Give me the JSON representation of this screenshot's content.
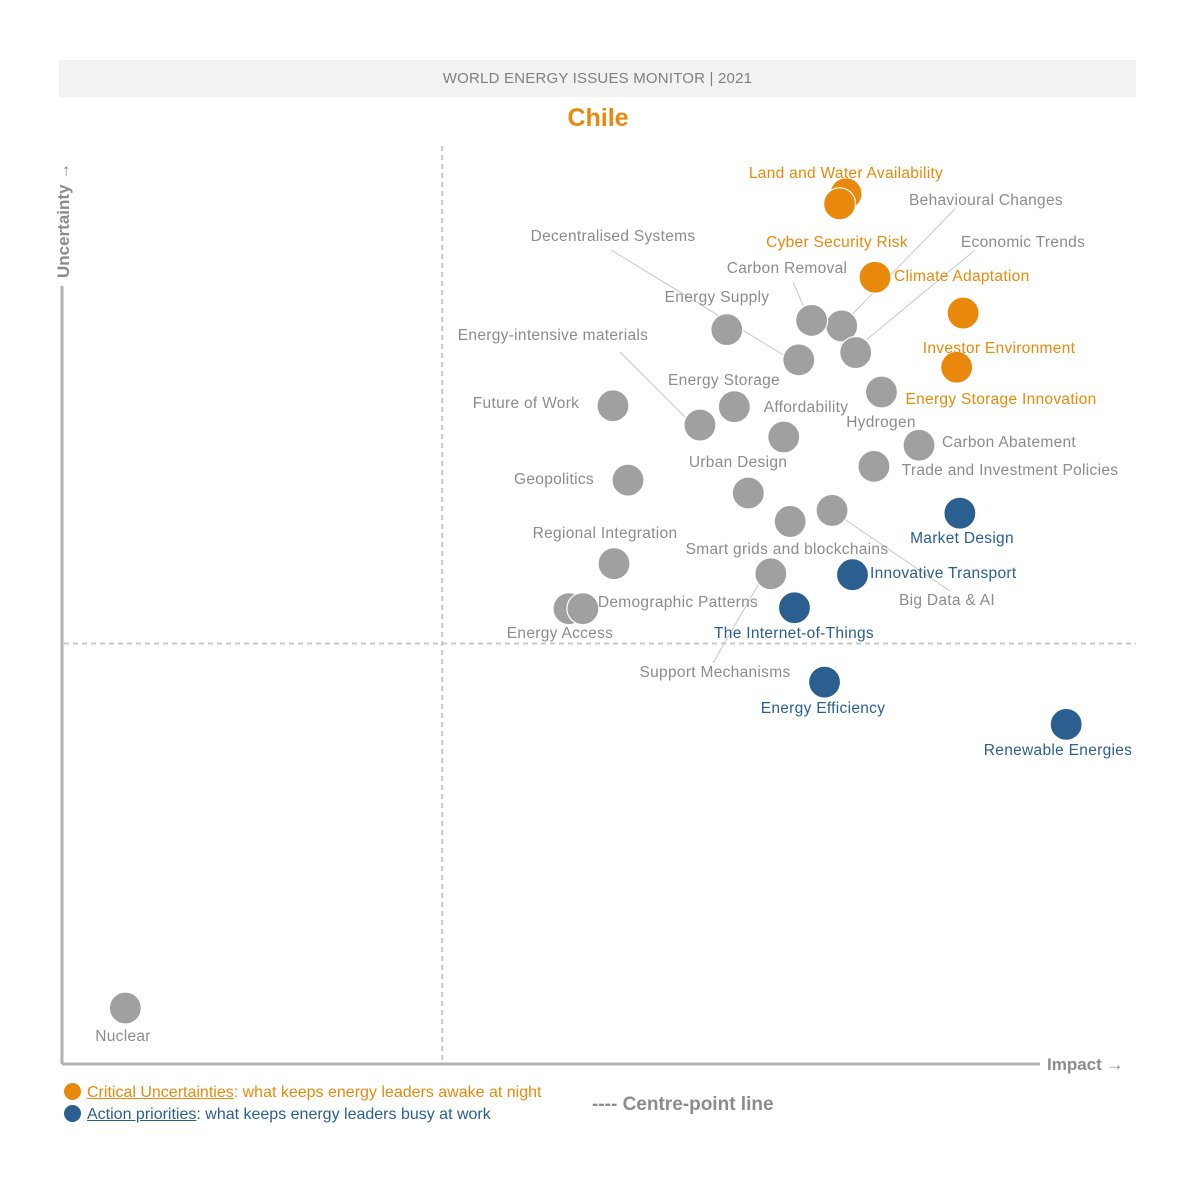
{
  "header": {
    "title": "WORLD ENERGY ISSUES MONITOR | 2021"
  },
  "subtitle": "Chile",
  "colors": {
    "critical": "#e8890c",
    "action": "#2a5f8f",
    "other": "#a0a0a0",
    "other_label": "#8c8c8c",
    "axis": "#b3b3b3"
  },
  "chart_data": {
    "type": "scatter",
    "title": "WORLD ENERGY ISSUES MONITOR | 2021",
    "subtitle": "Chile",
    "xlabel": "Impact",
    "ylabel": "Uncertainty",
    "xlim": [
      0,
      100
    ],
    "ylim": [
      0,
      100
    ],
    "centre_point": {
      "x": 35.4,
      "y": 45.8
    },
    "grid": false,
    "points": [
      {
        "name": "Land and Water Availability",
        "x": 73.0,
        "y": 94.8,
        "category": "critical"
      },
      {
        "name": "Cyber Security Risk",
        "x": 72.4,
        "y": 93.7,
        "category": "critical"
      },
      {
        "name": "Climate Adaptation",
        "x": 75.7,
        "y": 85.7,
        "category": "critical"
      },
      {
        "name": "Investor Environment",
        "x": 83.9,
        "y": 81.8,
        "category": "critical"
      },
      {
        "name": "Energy Storage Innovation",
        "x": 83.3,
        "y": 75.9,
        "category": "critical"
      },
      {
        "name": "Behavioural Changes",
        "x": 72.6,
        "y": 80.4,
        "category": "other"
      },
      {
        "name": "Economic Trends",
        "x": 73.9,
        "y": 77.5,
        "category": "other"
      },
      {
        "name": "Carbon Removal",
        "x": 69.8,
        "y": 81.0,
        "category": "other"
      },
      {
        "name": "Decentralised Systems",
        "x": 68.6,
        "y": 76.7,
        "category": "other"
      },
      {
        "name": "Energy Supply",
        "x": 61.9,
        "y": 80.0,
        "category": "other"
      },
      {
        "name": "Energy-intensive materials",
        "x": 59.4,
        "y": 69.6,
        "category": "other"
      },
      {
        "name": "Energy Storage",
        "x": 62.6,
        "y": 71.6,
        "category": "other"
      },
      {
        "name": "Affordability",
        "x": 67.2,
        "y": 68.3,
        "category": "other"
      },
      {
        "name": "Hydrogen",
        "x": 76.3,
        "y": 73.2,
        "category": "other"
      },
      {
        "name": "Carbon Abatement",
        "x": 79.8,
        "y": 67.4,
        "category": "other"
      },
      {
        "name": "Trade and Investment Policies",
        "x": 75.6,
        "y": 65.1,
        "category": "other"
      },
      {
        "name": "Future of Work",
        "x": 51.3,
        "y": 71.7,
        "category": "other"
      },
      {
        "name": "Geopolitics",
        "x": 52.7,
        "y": 63.6,
        "category": "other"
      },
      {
        "name": "Urban Design",
        "x": 63.9,
        "y": 62.2,
        "category": "other"
      },
      {
        "name": "Big Data & AI",
        "x": 71.7,
        "y": 60.3,
        "category": "other"
      },
      {
        "name": "Smart grids and blockchains",
        "x": 67.8,
        "y": 59.1,
        "category": "other"
      },
      {
        "name": "Regional Integration",
        "x": 51.4,
        "y": 54.5,
        "category": "other"
      },
      {
        "name": "Support Mechanisms",
        "x": 66.0,
        "y": 53.4,
        "category": "other"
      },
      {
        "name": "Energy Access",
        "x": 47.2,
        "y": 49.6,
        "category": "other"
      },
      {
        "name": "Demographic Patterns",
        "x": 48.5,
        "y": 49.6,
        "category": "other"
      },
      {
        "name": "Market Design",
        "x": 83.6,
        "y": 60.0,
        "category": "action"
      },
      {
        "name": "Innovative Transport",
        "x": 73.6,
        "y": 53.3,
        "category": "action"
      },
      {
        "name": "The Internet-of-Things",
        "x": 68.2,
        "y": 49.7,
        "category": "action"
      },
      {
        "name": "Energy Efficiency",
        "x": 71.0,
        "y": 41.6,
        "category": "action"
      },
      {
        "name": "Renewable Energies",
        "x": 93.5,
        "y": 37.0,
        "category": "action"
      },
      {
        "name": "Nuclear",
        "x": 5.9,
        "y": 6.1,
        "category": "other"
      }
    ]
  },
  "legend": {
    "critical_label": "Critical Uncertainties",
    "critical_text": ": what keeps energy leaders awake at night",
    "action_label": "Action priorities",
    "action_text": ": what keeps energy leaders busy at work",
    "centre_line": "---- Centre-point line"
  }
}
